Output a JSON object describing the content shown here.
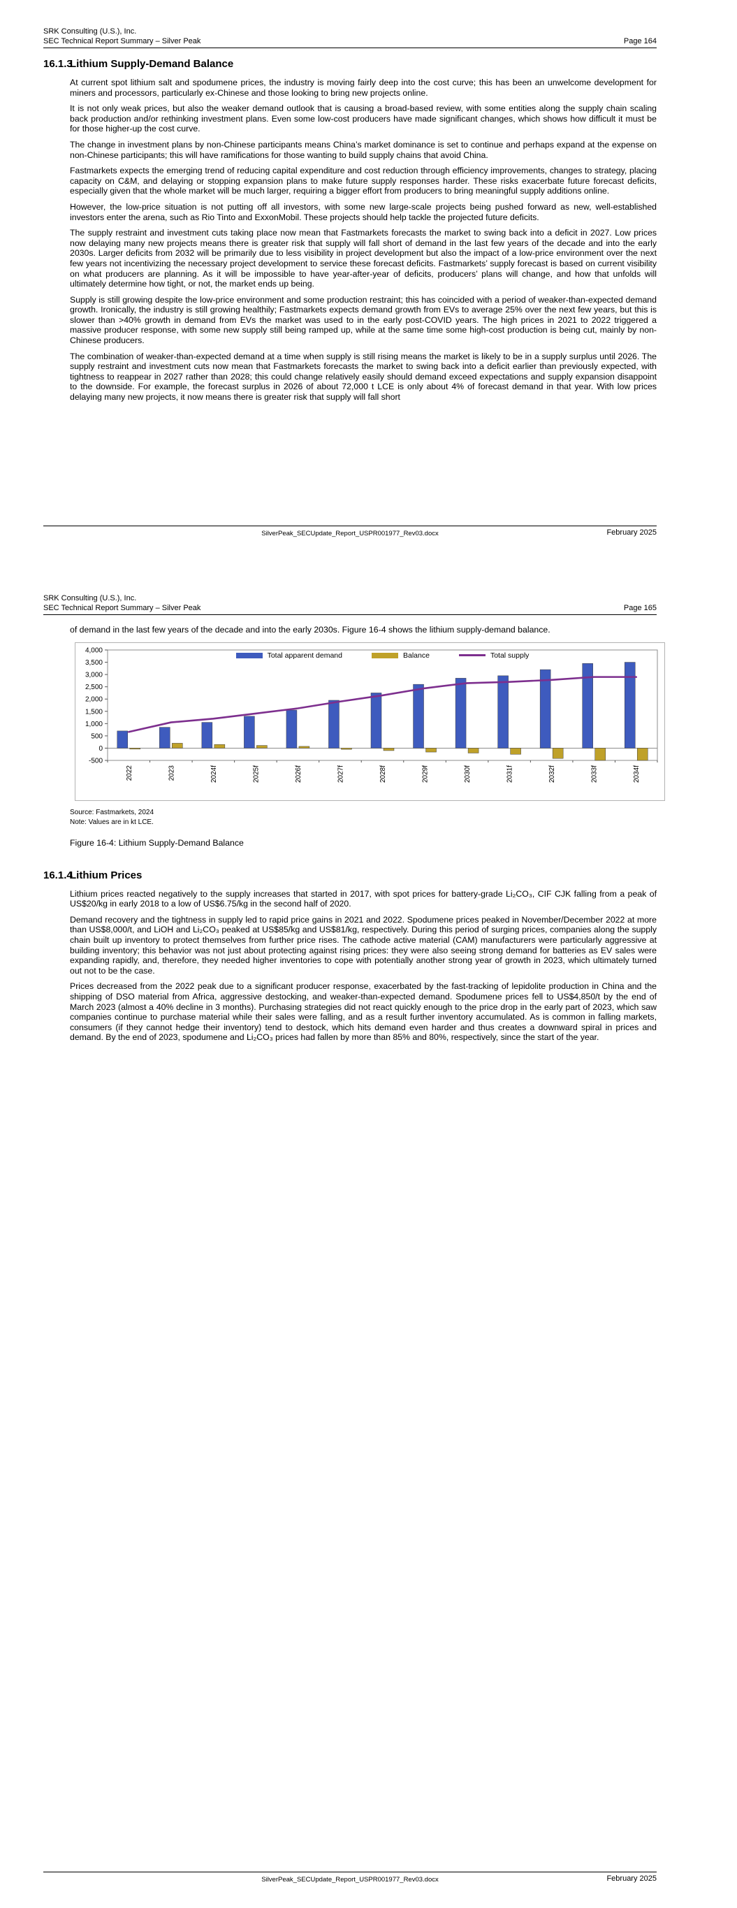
{
  "doc": {
    "company": "SRK Consulting (U.S.), Inc.",
    "report": "SEC Technical Report Summary – Silver Peak",
    "footer_filename": "SilverPeak_SECUpdate_Report_USPR001977_Rev03.docx",
    "footer_date": "February 2025"
  },
  "page164": {
    "page_label": "Page 164",
    "section_number": "16.1.3",
    "section_title": "Lithium Supply-Demand Balance",
    "paragraphs": [
      "At current spot lithium salt and spodumene prices, the industry is moving fairly deep into the cost curve; this has been an unwelcome development for miners and processors, particularly ex-Chinese and those looking to bring new projects online.",
      "It is not only weak prices, but also the weaker demand outlook that is causing a broad-based review, with some entities along the supply chain scaling back production and/or rethinking investment plans. Even some low-cost producers have made significant changes, which shows how difficult it must be for those higher-up the cost curve.",
      "The change in investment plans by non-Chinese participants means China’s market dominance is set to continue and perhaps expand at the expense on non-Chinese participants; this will have ramifications for those wanting to build supply chains that avoid China.",
      "Fastmarkets expects the emerging trend of reducing capital expenditure and cost reduction through efficiency improvements, changes to strategy, placing capacity on C&M, and delaying or stopping expansion plans to make future supply responses harder. These risks exacerbate future forecast deficits, especially given that the whole market will be much larger, requiring a bigger effort from producers to bring meaningful supply additions online.",
      "However, the low-price situation is not putting off all investors, with some new large-scale projects being pushed forward as new, well-established investors enter the arena, such as Rio Tinto and ExxonMobil. These projects should help tackle the projected future deficits.",
      "The supply restraint and investment cuts taking place now mean that Fastmarkets forecasts the market to swing back into a deficit in 2027. Low prices now delaying many new projects means there is greater risk that supply will fall short of demand in the last few years of the decade and into the early 2030s. Larger deficits from 2032 will be primarily due to less visibility in project development but also the impact of a low-price environment over the next few years not incentivizing the necessary project development to service these forecast deficits. Fastmarkets’ supply forecast is based on current visibility on what producers are planning. As it will be impossible to have year-after-year of deficits, producers’ plans will change, and how that unfolds will ultimately determine how tight, or not, the market ends up being.",
      "Supply is still growing despite the low-price environment and some production restraint; this has coincided with a period of weaker-than-expected demand growth. Ironically, the industry is still growing healthily; Fastmarkets expects demand growth from EVs to average 25% over the next few years, but this is slower than >40% growth in demand from EVs the market was used to in the early post-COVID years. The high prices in 2021 to 2022 triggered a massive producer response, with some new supply still being ramped up, while at the same time some high-cost production is being cut, mainly by non-Chinese producers.",
      "The combination of weaker-than-expected demand at a time when supply is still rising means the market is likely to be in a supply surplus until 2026. The supply restraint and investment cuts now mean that Fastmarkets forecasts the market to swing back into a deficit earlier than previously expected, with tightness to reappear in 2027 rather than 2028; this could change relatively easily should demand exceed expectations and supply expansion disappoint to the downside. For example, the forecast surplus in 2026 of about 72,000 t LCE is only about 4% of forecast demand in that year. With low prices delaying many new projects, it now means there is greater risk that supply will fall short"
    ]
  },
  "page165": {
    "page_label": "Page 165",
    "intro": "of demand in the last few years of the decade and into the early 2030s. Figure 16-4 shows the lithium supply-demand balance.",
    "source_line": "Source: Fastmarkets, 2024",
    "note_line": "Note: Values are in kt LCE.",
    "figure_caption": "Figure 16-4: Lithium Supply-Demand Balance",
    "section_number": "16.1.4",
    "section_title": "Lithium Prices",
    "paragraphs": [
      "Lithium prices reacted negatively to the supply increases that started in 2017, with spot prices for battery-grade Li₂CO₃, CIF CJK falling from a peak of US$20/kg in early 2018 to a low of US$6.75/kg in the second half of 2020.",
      "Demand recovery and the tightness in supply led to rapid price gains in 2021 and 2022. Spodumene prices peaked in November/December 2022 at more than US$8,000/t, and LiOH and Li₂CO₃ peaked at US$85/kg and US$81/kg, respectively. During this period of surging prices, companies along the supply chain built up inventory to protect themselves from further price rises. The cathode active material (CAM) manufacturers were particularly aggressive at building inventory; this behavior was not just about protecting against rising prices: they were also seeing strong demand for batteries as EV sales were expanding rapidly, and, therefore, they needed higher inventories to cope with potentially another strong year of growth in 2023, which ultimately turned out not to be the case.",
      "Prices decreased from the 2022 peak due to a significant producer response, exacerbated by the fast-tracking of lepidolite production in China and the shipping of DSO material from Africa, aggressive destocking, and weaker-than-expected demand. Spodumene prices fell to US$4,850/t by the end of March 2023 (almost a 40% decline in 3 months). Purchasing strategies did not react quickly enough to the price drop in the early part of 2023, which saw companies continue to purchase material while their sales were falling, and as a result further inventory accumulated. As is common in falling markets, consumers (if they cannot hedge their inventory) tend to destock, which hits demand even harder and thus creates a downward spiral in prices and demand. By the end of 2023, spodumene and Li₂CO₃ prices had fallen by more than 85% and 80%, respectively, since the start of the year."
    ]
  },
  "chart_data": {
    "type": "bar",
    "subtype": "clustered-bar-with-line",
    "title": "",
    "xlabel": "",
    "ylabel": "",
    "unit": "kt LCE",
    "categories": [
      "2022",
      "2023",
      "2024f",
      "2025f",
      "2026f",
      "2027f",
      "2028f",
      "2029f",
      "2030f",
      "2031f",
      "2032f",
      "2033f",
      "2034f"
    ],
    "series": [
      {
        "name": "Total apparent demand",
        "type": "bar",
        "color": "#3E5BBE",
        "values": [
          700,
          850,
          1050,
          1300,
          1550,
          1950,
          2250,
          2600,
          2850,
          2950,
          3200,
          3450,
          3500
        ]
      },
      {
        "name": "Balance",
        "type": "bar",
        "color": "#BFA129",
        "values": [
          -40,
          200,
          150,
          110,
          72,
          -50,
          -100,
          -160,
          -200,
          -250,
          -420,
          -550,
          -600
        ]
      },
      {
        "name": "Total supply",
        "type": "line",
        "color": "#7D2F8E",
        "values": [
          660,
          1050,
          1200,
          1410,
          1622,
          1900,
          2150,
          2440,
          2650,
          2700,
          2780,
          2900,
          2900
        ]
      }
    ],
    "ylim": [
      -500,
      4000
    ],
    "ytick_step": 500,
    "gridlines": false,
    "legend_position": "top-inside"
  }
}
